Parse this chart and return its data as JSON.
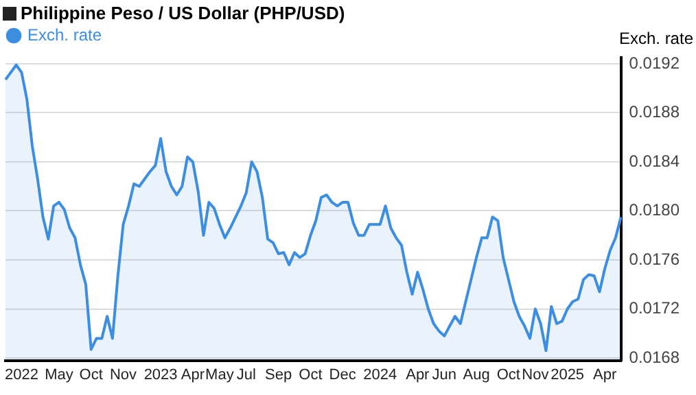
{
  "chart_data": {
    "type": "area",
    "title": "Philippine Peso / US Dollar (PHP/USD)",
    "ylabel": "Exch. rate",
    "categories": [
      null,
      null,
      null,
      "2022",
      null,
      null,
      null,
      null,
      null,
      null,
      "May",
      null,
      null,
      null,
      null,
      null,
      "Oct",
      null,
      null,
      null,
      null,
      null,
      "Nov",
      null,
      null,
      null,
      null,
      null,
      null,
      "2023",
      null,
      null,
      null,
      null,
      null,
      "Apr",
      null,
      null,
      null,
      null,
      "May",
      null,
      null,
      null,
      null,
      "Jul",
      null,
      null,
      null,
      null,
      null,
      "Sep",
      null,
      null,
      null,
      null,
      null,
      "Oct",
      null,
      null,
      null,
      null,
      null,
      "Dec",
      null,
      null,
      null,
      null,
      null,
      null,
      "2024",
      null,
      null,
      null,
      null,
      null,
      null,
      "Apr",
      null,
      null,
      null,
      null,
      "Jun",
      null,
      null,
      null,
      null,
      null,
      "Aug",
      null,
      null,
      null,
      null,
      null,
      "Oct",
      null,
      null,
      null,
      null,
      "Nov",
      null,
      null,
      null,
      null,
      null,
      "2025",
      null,
      null,
      null,
      null,
      null,
      null,
      "Apr",
      null,
      null,
      null
    ],
    "series": [
      {
        "name": "Exch. rate",
        "color": "#3d8ee0",
        "values": [
          0.01907,
          0.01913,
          0.01919,
          0.01913,
          0.01891,
          0.01853,
          0.01826,
          0.01795,
          0.01777,
          0.01804,
          0.01807,
          0.01801,
          0.01786,
          0.01778,
          0.01756,
          0.0174,
          0.01687,
          0.01696,
          0.01696,
          0.01714,
          0.01696,
          0.01747,
          0.01789,
          0.01804,
          0.01822,
          0.0182,
          0.01826,
          0.01832,
          0.01837,
          0.01859,
          0.01832,
          0.0182,
          0.01813,
          0.0182,
          0.01844,
          0.0184,
          0.01816,
          0.0178,
          0.01807,
          0.01802,
          0.01789,
          0.01778,
          0.01786,
          0.01795,
          0.01804,
          0.01815,
          0.0184,
          0.01832,
          0.01811,
          0.01777,
          0.01774,
          0.01765,
          0.01766,
          0.01756,
          0.01766,
          0.01762,
          0.01765,
          0.0178,
          0.01792,
          0.01811,
          0.01813,
          0.01807,
          0.01804,
          0.01807,
          0.01807,
          0.0179,
          0.0178,
          0.0178,
          0.01789,
          0.01789,
          0.01789,
          0.01804,
          0.01786,
          0.01778,
          0.01772,
          0.0175,
          0.01732,
          0.0175,
          0.01736,
          0.0172,
          0.01708,
          0.01702,
          0.01698,
          0.01706,
          0.01714,
          0.01708,
          0.01726,
          0.01744,
          0.01762,
          0.01778,
          0.01778,
          0.01795,
          0.01792,
          0.01762,
          0.01744,
          0.01726,
          0.01714,
          0.01706,
          0.01696,
          0.0172,
          0.01708,
          0.01686,
          0.01722,
          0.01708,
          0.0171,
          0.0172,
          0.01726,
          0.01728,
          0.01744,
          0.01748,
          0.01747,
          0.01734,
          0.01753,
          0.01768,
          0.01778,
          0.01795
        ]
      }
    ],
    "ylim": [
      0.01678,
      0.01925
    ],
    "yticks": [
      {
        "value": 0.0168,
        "label": "0.0168"
      },
      {
        "value": 0.0172,
        "label": "0.0172"
      },
      {
        "value": 0.0176,
        "label": "0.0176"
      },
      {
        "value": 0.018,
        "label": "0.0180"
      },
      {
        "value": 0.0184,
        "label": "0.0184"
      },
      {
        "value": 0.0188,
        "label": "0.0188"
      },
      {
        "value": 0.0192,
        "label": "0.0192"
      }
    ],
    "grid": "y",
    "legend": "top left",
    "marker": "none",
    "line_style": "solid"
  }
}
